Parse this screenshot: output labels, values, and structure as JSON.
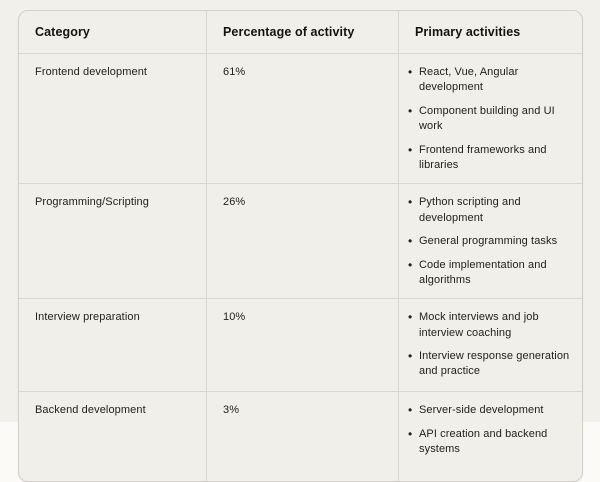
{
  "colors": {
    "page_background": "#f2f0ea",
    "table_background": "#f1efe9",
    "border": "#d2d0c8",
    "divider": "#d8d6ce",
    "header_text": "#14130f",
    "body_text": "#22211d"
  },
  "table": {
    "headers": [
      "Category",
      "Percentage of activity",
      "Primary activities"
    ],
    "rows": [
      {
        "category": "Frontend development",
        "percentage": "61%",
        "activities": [
          "React, Vue, Angular development",
          "Component building and UI work",
          "Frontend frameworks and libraries"
        ]
      },
      {
        "category": "Programming/Scripting",
        "percentage": "26%",
        "activities": [
          "Python scripting and development",
          "General programming tasks",
          "Code implementation and algorithms"
        ]
      },
      {
        "category": "Interview preparation",
        "percentage": "10%",
        "activities": [
          "Mock interviews and job interview coaching",
          "Interview response generation and practice"
        ]
      },
      {
        "category": "Backend development",
        "percentage": "3%",
        "activities": [
          "Server-side development",
          "API creation and backend systems"
        ]
      }
    ]
  }
}
